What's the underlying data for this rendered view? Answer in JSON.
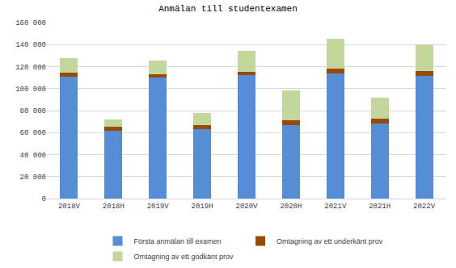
{
  "chart_data": {
    "type": "bar",
    "title": "Anmälan till studentexamen",
    "categories": [
      "2018V",
      "2018H",
      "2019V",
      "2019H",
      "2020V",
      "2020H",
      "2021V",
      "2021H",
      "2022V"
    ],
    "series": [
      {
        "name": "Första anmälan till examen",
        "color": "#558ED5",
        "values": [
          111000,
          61500,
          110000,
          63000,
          112000,
          67000,
          113500,
          68000,
          111500
        ]
      },
      {
        "name": "Omtagning av ett underkänt prov",
        "color": "#984807",
        "values": [
          3500,
          3500,
          3000,
          4000,
          3500,
          4000,
          4500,
          4500,
          4500
        ]
      },
      {
        "name": "Omtagning av ett godkänt prov",
        "color": "#C3D69B",
        "values": [
          13500,
          7000,
          12500,
          11000,
          19000,
          27000,
          27500,
          19500,
          24000
        ]
      }
    ],
    "ylim": [
      0,
      160000
    ],
    "yticks": [
      0,
      {
        "value": 20000,
        "label": "20 000"
      },
      {
        "value": 40000,
        "label": "40 000"
      },
      {
        "value": 60000,
        "label": "60 000"
      },
      {
        "value": 80000,
        "label": "80 000"
      },
      {
        "value": 100000,
        "label": "100 000"
      },
      {
        "value": 120000,
        "label": "120 000"
      },
      {
        "value": 140000,
        "label": "140 000"
      },
      {
        "value": 160000,
        "label": "160 000"
      }
    ],
    "stacked": true,
    "grid": true,
    "legend": "bottom"
  }
}
